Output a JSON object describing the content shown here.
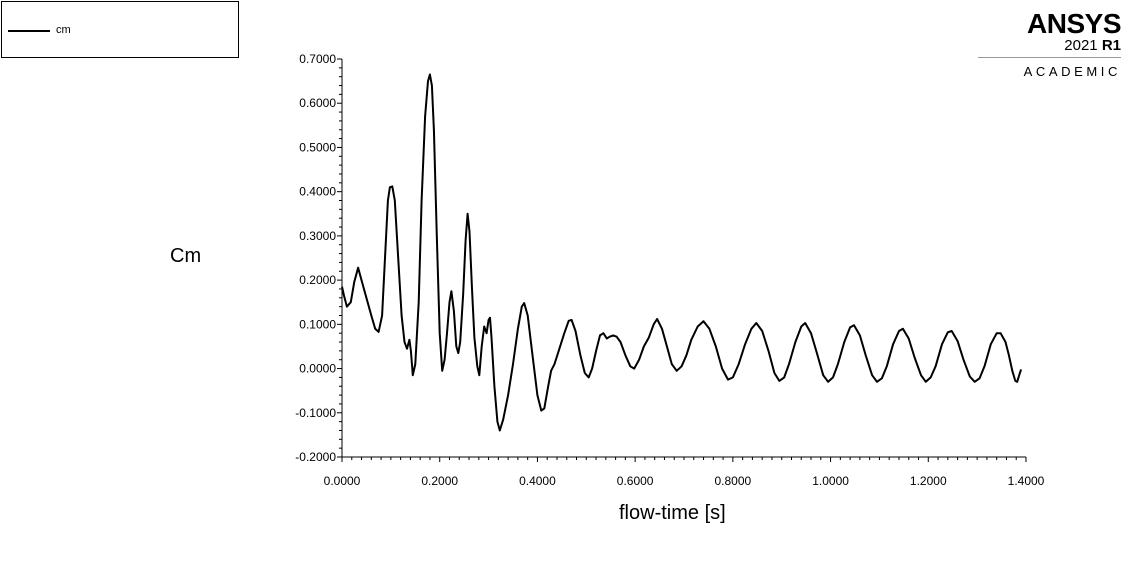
{
  "legend": {
    "entries": [
      {
        "name": "cm",
        "color": "#000000"
      }
    ]
  },
  "logo": {
    "brand": "ANSYS",
    "version_year": "2021",
    "version_release": "R1",
    "edition": "ACADEMIC"
  },
  "chart_data": {
    "type": "line",
    "title": "",
    "xlabel": "flow-time [s]",
    "ylabel": "Cm",
    "xlim": [
      0,
      1.4
    ],
    "ylim": [
      -0.2,
      0.7
    ],
    "x_ticks": [
      "0.0000",
      "0.2000",
      "0.4000",
      "0.6000",
      "0.8000",
      "1.0000",
      "1.2000",
      "1.4000"
    ],
    "y_ticks": [
      "0.7000",
      "0.6000",
      "0.5000",
      "0.4000",
      "0.3000",
      "0.2000",
      "0.1000",
      "0.0000",
      "-0.1000",
      "-0.2000"
    ],
    "grid": false,
    "legend_position": "top-left",
    "series": [
      {
        "name": "cm",
        "color": "#000000",
        "points": [
          [
            0.0,
            0.185
          ],
          [
            0.004,
            0.165
          ],
          [
            0.01,
            0.14
          ],
          [
            0.018,
            0.15
          ],
          [
            0.025,
            0.195
          ],
          [
            0.033,
            0.228
          ],
          [
            0.04,
            0.2
          ],
          [
            0.05,
            0.16
          ],
          [
            0.06,
            0.12
          ],
          [
            0.068,
            0.09
          ],
          [
            0.075,
            0.083
          ],
          [
            0.082,
            0.12
          ],
          [
            0.088,
            0.25
          ],
          [
            0.094,
            0.38
          ],
          [
            0.098,
            0.41
          ],
          [
            0.103,
            0.412
          ],
          [
            0.108,
            0.38
          ],
          [
            0.115,
            0.25
          ],
          [
            0.122,
            0.12
          ],
          [
            0.128,
            0.06
          ],
          [
            0.133,
            0.045
          ],
          [
            0.138,
            0.065
          ],
          [
            0.141,
            0.04
          ],
          [
            0.145,
            -0.015
          ],
          [
            0.15,
            0.01
          ],
          [
            0.157,
            0.15
          ],
          [
            0.163,
            0.38
          ],
          [
            0.17,
            0.57
          ],
          [
            0.176,
            0.65
          ],
          [
            0.18,
            0.665
          ],
          [
            0.184,
            0.64
          ],
          [
            0.188,
            0.54
          ],
          [
            0.194,
            0.3
          ],
          [
            0.2,
            0.08
          ],
          [
            0.205,
            -0.005
          ],
          [
            0.21,
            0.02
          ],
          [
            0.215,
            0.08
          ],
          [
            0.22,
            0.15
          ],
          [
            0.224,
            0.175
          ],
          [
            0.229,
            0.13
          ],
          [
            0.234,
            0.05
          ],
          [
            0.238,
            0.035
          ],
          [
            0.242,
            0.06
          ],
          [
            0.248,
            0.17
          ],
          [
            0.253,
            0.29
          ],
          [
            0.257,
            0.35
          ],
          [
            0.261,
            0.31
          ],
          [
            0.266,
            0.18
          ],
          [
            0.271,
            0.07
          ],
          [
            0.277,
            0.005
          ],
          [
            0.281,
            -0.015
          ],
          [
            0.286,
            0.05
          ],
          [
            0.291,
            0.095
          ],
          [
            0.296,
            0.08
          ],
          [
            0.3,
            0.11
          ],
          [
            0.303,
            0.115
          ],
          [
            0.306,
            0.07
          ],
          [
            0.312,
            -0.04
          ],
          [
            0.318,
            -0.12
          ],
          [
            0.323,
            -0.14
          ],
          [
            0.33,
            -0.115
          ],
          [
            0.34,
            -0.06
          ],
          [
            0.35,
            0.01
          ],
          [
            0.36,
            0.09
          ],
          [
            0.368,
            0.14
          ],
          [
            0.373,
            0.148
          ],
          [
            0.38,
            0.12
          ],
          [
            0.39,
            0.03
          ],
          [
            0.4,
            -0.06
          ],
          [
            0.408,
            -0.095
          ],
          [
            0.414,
            -0.09
          ],
          [
            0.422,
            -0.04
          ],
          [
            0.428,
            -0.005
          ],
          [
            0.435,
            0.01
          ],
          [
            0.445,
            0.045
          ],
          [
            0.455,
            0.08
          ],
          [
            0.464,
            0.108
          ],
          [
            0.47,
            0.11
          ],
          [
            0.478,
            0.085
          ],
          [
            0.488,
            0.03
          ],
          [
            0.497,
            -0.01
          ],
          [
            0.505,
            -0.02
          ],
          [
            0.512,
            0.0
          ],
          [
            0.52,
            0.04
          ],
          [
            0.528,
            0.075
          ],
          [
            0.535,
            0.08
          ],
          [
            0.542,
            0.068
          ],
          [
            0.548,
            0.072
          ],
          [
            0.555,
            0.075
          ],
          [
            0.562,
            0.072
          ],
          [
            0.57,
            0.06
          ],
          [
            0.58,
            0.03
          ],
          [
            0.59,
            0.005
          ],
          [
            0.598,
            0.0
          ],
          [
            0.608,
            0.02
          ],
          [
            0.618,
            0.05
          ],
          [
            0.628,
            0.07
          ],
          [
            0.638,
            0.1
          ],
          [
            0.645,
            0.112
          ],
          [
            0.655,
            0.09
          ],
          [
            0.665,
            0.05
          ],
          [
            0.675,
            0.01
          ],
          [
            0.685,
            -0.005
          ],
          [
            0.695,
            0.005
          ],
          [
            0.705,
            0.03
          ],
          [
            0.715,
            0.065
          ],
          [
            0.728,
            0.095
          ],
          [
            0.74,
            0.107
          ],
          [
            0.752,
            0.09
          ],
          [
            0.765,
            0.05
          ],
          [
            0.778,
            0.0
          ],
          [
            0.79,
            -0.025
          ],
          [
            0.8,
            -0.02
          ],
          [
            0.812,
            0.01
          ],
          [
            0.825,
            0.055
          ],
          [
            0.838,
            0.09
          ],
          [
            0.848,
            0.103
          ],
          [
            0.86,
            0.085
          ],
          [
            0.873,
            0.04
          ],
          [
            0.885,
            -0.01
          ],
          [
            0.895,
            -0.028
          ],
          [
            0.905,
            -0.02
          ],
          [
            0.915,
            0.01
          ],
          [
            0.928,
            0.06
          ],
          [
            0.94,
            0.095
          ],
          [
            0.948,
            0.103
          ],
          [
            0.96,
            0.08
          ],
          [
            0.972,
            0.035
          ],
          [
            0.985,
            -0.015
          ],
          [
            0.995,
            -0.03
          ],
          [
            1.005,
            -0.02
          ],
          [
            1.015,
            0.01
          ],
          [
            1.028,
            0.06
          ],
          [
            1.04,
            0.093
          ],
          [
            1.048,
            0.098
          ],
          [
            1.06,
            0.075
          ],
          [
            1.072,
            0.03
          ],
          [
            1.085,
            -0.015
          ],
          [
            1.095,
            -0.03
          ],
          [
            1.105,
            -0.022
          ],
          [
            1.115,
            0.005
          ],
          [
            1.128,
            0.055
          ],
          [
            1.14,
            0.085
          ],
          [
            1.148,
            0.09
          ],
          [
            1.16,
            0.068
          ],
          [
            1.172,
            0.025
          ],
          [
            1.185,
            -0.015
          ],
          [
            1.195,
            -0.03
          ],
          [
            1.205,
            -0.02
          ],
          [
            1.215,
            0.005
          ],
          [
            1.228,
            0.055
          ],
          [
            1.24,
            0.082
          ],
          [
            1.248,
            0.085
          ],
          [
            1.26,
            0.062
          ],
          [
            1.272,
            0.02
          ],
          [
            1.285,
            -0.018
          ],
          [
            1.295,
            -0.03
          ],
          [
            1.305,
            -0.022
          ],
          [
            1.315,
            0.005
          ],
          [
            1.328,
            0.055
          ],
          [
            1.34,
            0.08
          ],
          [
            1.348,
            0.08
          ],
          [
            1.358,
            0.06
          ],
          [
            1.365,
            0.03
          ],
          [
            1.372,
            -0.005
          ],
          [
            1.378,
            -0.028
          ],
          [
            1.382,
            -0.03
          ],
          [
            1.386,
            -0.015
          ],
          [
            1.39,
            -0.002
          ]
        ]
      }
    ]
  }
}
